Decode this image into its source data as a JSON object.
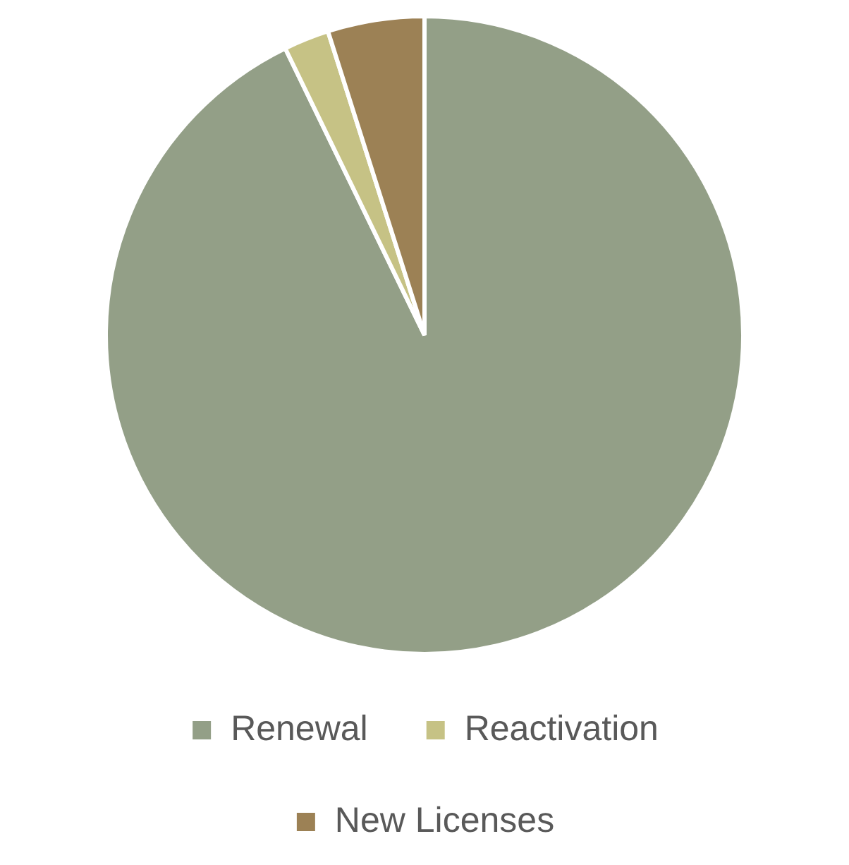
{
  "chart_data": {
    "type": "pie",
    "categories": [
      "Renewal",
      "Reactivation",
      "New Licenses"
    ],
    "values": [
      92.8,
      2.3,
      4.9
    ],
    "colors": [
      "#939f87",
      "#c6c285",
      "#9c8155"
    ],
    "legend": "bottom"
  }
}
